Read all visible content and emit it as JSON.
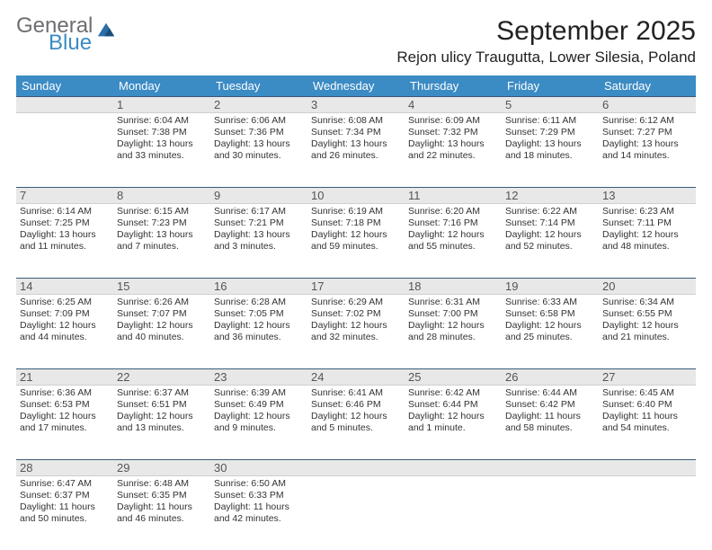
{
  "brand": {
    "general": "General",
    "blue": "Blue"
  },
  "title": "September 2025",
  "location": "Rejon ulicy Traugutta, Lower Silesia, Poland",
  "colors": {
    "header_bg": "#3b8bc4",
    "daynum_bg": "#e8e8e8",
    "daynum_border_top": "#3b5a7a",
    "text": "#333333",
    "logo_gray": "#6d6e71",
    "logo_blue": "#3b8bc4"
  },
  "weekdays": [
    "Sunday",
    "Monday",
    "Tuesday",
    "Wednesday",
    "Thursday",
    "Friday",
    "Saturday"
  ],
  "weeks": [
    [
      {
        "day": null
      },
      {
        "day": 1,
        "sunrise": "6:04 AM",
        "sunset": "7:38 PM",
        "daylight": "13 hours and 33 minutes."
      },
      {
        "day": 2,
        "sunrise": "6:06 AM",
        "sunset": "7:36 PM",
        "daylight": "13 hours and 30 minutes."
      },
      {
        "day": 3,
        "sunrise": "6:08 AM",
        "sunset": "7:34 PM",
        "daylight": "13 hours and 26 minutes."
      },
      {
        "day": 4,
        "sunrise": "6:09 AM",
        "sunset": "7:32 PM",
        "daylight": "13 hours and 22 minutes."
      },
      {
        "day": 5,
        "sunrise": "6:11 AM",
        "sunset": "7:29 PM",
        "daylight": "13 hours and 18 minutes."
      },
      {
        "day": 6,
        "sunrise": "6:12 AM",
        "sunset": "7:27 PM",
        "daylight": "13 hours and 14 minutes."
      }
    ],
    [
      {
        "day": 7,
        "sunrise": "6:14 AM",
        "sunset": "7:25 PM",
        "daylight": "13 hours and 11 minutes."
      },
      {
        "day": 8,
        "sunrise": "6:15 AM",
        "sunset": "7:23 PM",
        "daylight": "13 hours and 7 minutes."
      },
      {
        "day": 9,
        "sunrise": "6:17 AM",
        "sunset": "7:21 PM",
        "daylight": "13 hours and 3 minutes."
      },
      {
        "day": 10,
        "sunrise": "6:19 AM",
        "sunset": "7:18 PM",
        "daylight": "12 hours and 59 minutes."
      },
      {
        "day": 11,
        "sunrise": "6:20 AM",
        "sunset": "7:16 PM",
        "daylight": "12 hours and 55 minutes."
      },
      {
        "day": 12,
        "sunrise": "6:22 AM",
        "sunset": "7:14 PM",
        "daylight": "12 hours and 52 minutes."
      },
      {
        "day": 13,
        "sunrise": "6:23 AM",
        "sunset": "7:11 PM",
        "daylight": "12 hours and 48 minutes."
      }
    ],
    [
      {
        "day": 14,
        "sunrise": "6:25 AM",
        "sunset": "7:09 PM",
        "daylight": "12 hours and 44 minutes."
      },
      {
        "day": 15,
        "sunrise": "6:26 AM",
        "sunset": "7:07 PM",
        "daylight": "12 hours and 40 minutes."
      },
      {
        "day": 16,
        "sunrise": "6:28 AM",
        "sunset": "7:05 PM",
        "daylight": "12 hours and 36 minutes."
      },
      {
        "day": 17,
        "sunrise": "6:29 AM",
        "sunset": "7:02 PM",
        "daylight": "12 hours and 32 minutes."
      },
      {
        "day": 18,
        "sunrise": "6:31 AM",
        "sunset": "7:00 PM",
        "daylight": "12 hours and 28 minutes."
      },
      {
        "day": 19,
        "sunrise": "6:33 AM",
        "sunset": "6:58 PM",
        "daylight": "12 hours and 25 minutes."
      },
      {
        "day": 20,
        "sunrise": "6:34 AM",
        "sunset": "6:55 PM",
        "daylight": "12 hours and 21 minutes."
      }
    ],
    [
      {
        "day": 21,
        "sunrise": "6:36 AM",
        "sunset": "6:53 PM",
        "daylight": "12 hours and 17 minutes."
      },
      {
        "day": 22,
        "sunrise": "6:37 AM",
        "sunset": "6:51 PM",
        "daylight": "12 hours and 13 minutes."
      },
      {
        "day": 23,
        "sunrise": "6:39 AM",
        "sunset": "6:49 PM",
        "daylight": "12 hours and 9 minutes."
      },
      {
        "day": 24,
        "sunrise": "6:41 AM",
        "sunset": "6:46 PM",
        "daylight": "12 hours and 5 minutes."
      },
      {
        "day": 25,
        "sunrise": "6:42 AM",
        "sunset": "6:44 PM",
        "daylight": "12 hours and 1 minute."
      },
      {
        "day": 26,
        "sunrise": "6:44 AM",
        "sunset": "6:42 PM",
        "daylight": "11 hours and 58 minutes."
      },
      {
        "day": 27,
        "sunrise": "6:45 AM",
        "sunset": "6:40 PM",
        "daylight": "11 hours and 54 minutes."
      }
    ],
    [
      {
        "day": 28,
        "sunrise": "6:47 AM",
        "sunset": "6:37 PM",
        "daylight": "11 hours and 50 minutes."
      },
      {
        "day": 29,
        "sunrise": "6:48 AM",
        "sunset": "6:35 PM",
        "daylight": "11 hours and 46 minutes."
      },
      {
        "day": 30,
        "sunrise": "6:50 AM",
        "sunset": "6:33 PM",
        "daylight": "11 hours and 42 minutes."
      },
      {
        "day": null
      },
      {
        "day": null
      },
      {
        "day": null
      },
      {
        "day": null
      }
    ]
  ],
  "labels": {
    "sunrise_prefix": "Sunrise: ",
    "sunset_prefix": "Sunset: ",
    "daylight_prefix": "Daylight: "
  }
}
